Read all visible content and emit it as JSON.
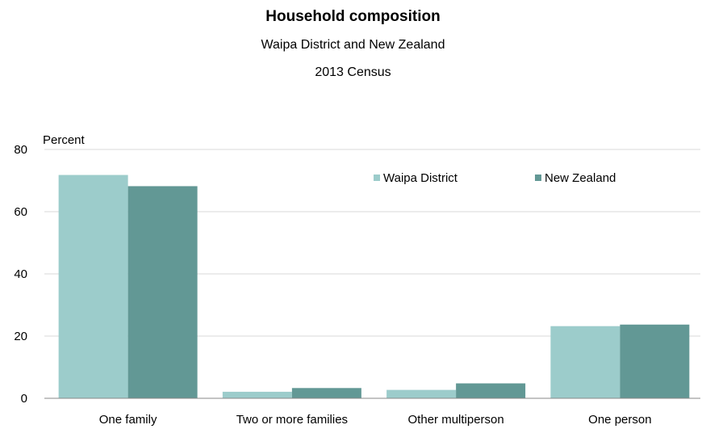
{
  "chart_data": {
    "type": "bar",
    "title": "Household composition",
    "subtitle": "Waipa District and New Zealand",
    "subtitle2": "2013 Census",
    "ylabel": "Percent",
    "ylim": [
      0,
      80
    ],
    "yticks": [
      "0",
      "20",
      "40",
      "60",
      "80"
    ],
    "grid": true,
    "legend_position": "top-right",
    "categories": [
      "One family",
      "Two or more families",
      "Other multiperson",
      "One person"
    ],
    "series": [
      {
        "name": "Waipa District",
        "color": "#9ccccb",
        "values": [
          71.8,
          2.1,
          2.7,
          23.2
        ]
      },
      {
        "name": "New Zealand",
        "color": "#629895",
        "values": [
          68.2,
          3.3,
          4.8,
          23.7
        ]
      }
    ]
  }
}
